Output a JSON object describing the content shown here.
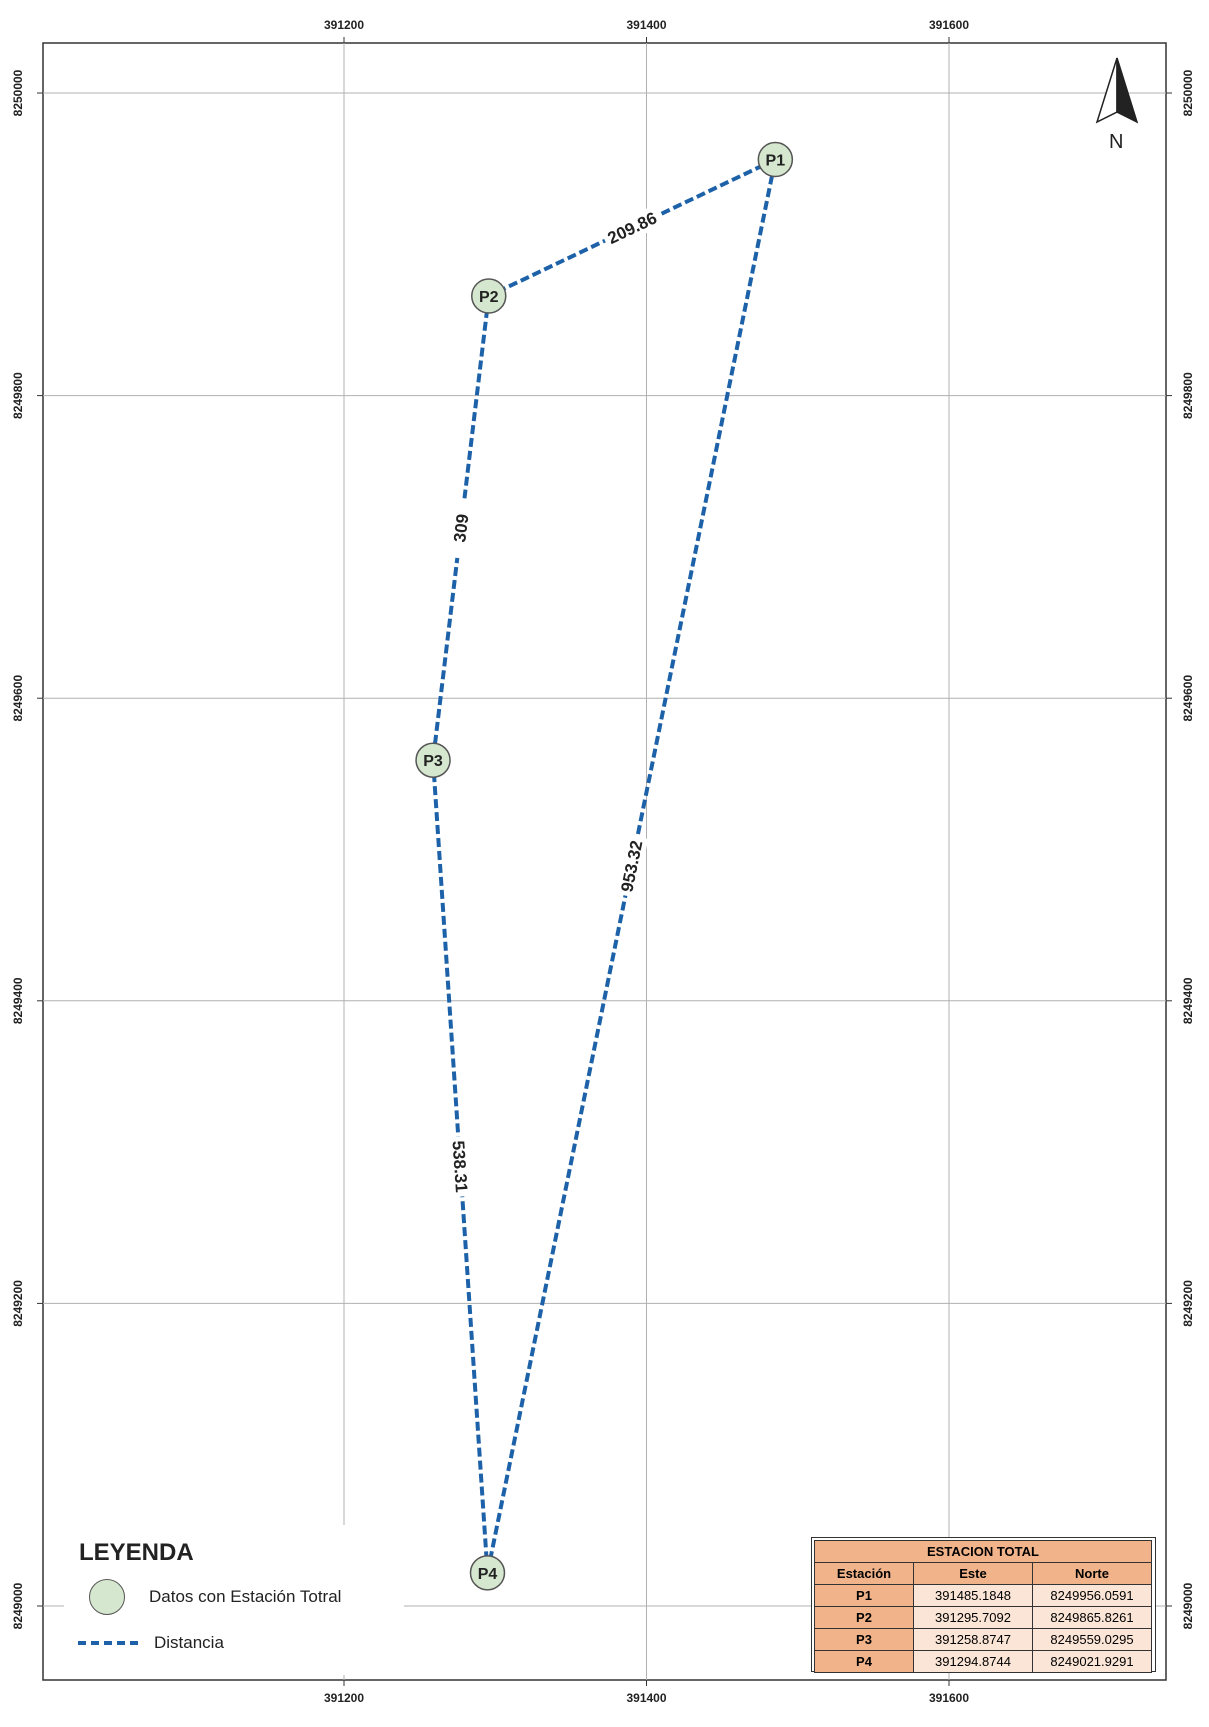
{
  "axes": {
    "x_ticks": [
      "391200",
      "391400",
      "391600"
    ],
    "y_ticks": [
      "8250000",
      "8249800",
      "8249600",
      "8249400",
      "8249200",
      "8249000"
    ]
  },
  "north_arrow": {
    "letter": "N",
    "icon": "north-arrow-icon"
  },
  "stations": [
    {
      "id": "P1",
      "este": 391485.1848,
      "norte": 8249956.0591
    },
    {
      "id": "P2",
      "este": 391295.7092,
      "norte": 8249865.8261
    },
    {
      "id": "P3",
      "este": 391258.8747,
      "norte": 8249559.0295
    },
    {
      "id": "P4",
      "este": 391294.8744,
      "norte": 8249021.9291
    }
  ],
  "distances": [
    {
      "from": "P1",
      "to": "P2",
      "label": "209.86"
    },
    {
      "from": "P2",
      "to": "P3",
      "label": "309"
    },
    {
      "from": "P3",
      "to": "P4",
      "label": "538.31"
    },
    {
      "from": "P4",
      "to": "P1",
      "label": "953.32"
    }
  ],
  "colors": {
    "station_fill": "#d5e8cf",
    "line": "#1d62a8",
    "table_header": "#f1b48a",
    "table_cell": "#fbe5d6"
  },
  "legend": {
    "title": "LEYENDA",
    "items": [
      {
        "symbol": "station-circle",
        "label": "Datos con Estación Totral"
      },
      {
        "symbol": "dashed-line",
        "label": "Distancia"
      }
    ]
  },
  "table": {
    "title": "ESTACION TOTAL",
    "headers": [
      "Estación",
      "Este",
      "Norte"
    ],
    "rows": [
      [
        "P1",
        "391485.1848",
        "8249956.0591"
      ],
      [
        "P2",
        "391295.7092",
        "8249865.8261"
      ],
      [
        "P3",
        "391258.8747",
        "8249559.0295"
      ],
      [
        "P4",
        "391294.8744",
        "8249021.9291"
      ]
    ]
  }
}
